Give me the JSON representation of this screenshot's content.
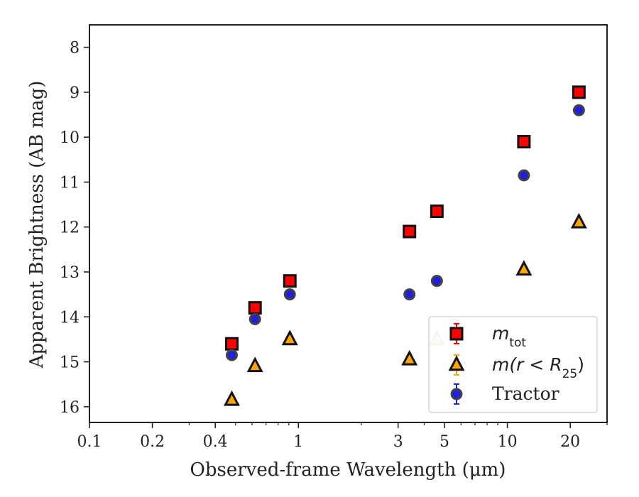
{
  "chart_data": {
    "type": "scatter",
    "xlabel": "Observed-frame Wavelength (μm)",
    "ylabel": "Apparent Brightness (AB mag)",
    "x_scale": "log",
    "xlim": [
      0.1,
      30
    ],
    "ylim": [
      16.35,
      7.5
    ],
    "y_inverted": true,
    "x_ticks": [
      {
        "value": 0.1,
        "label": "0.1"
      },
      {
        "value": 0.2,
        "label": "0.2"
      },
      {
        "value": 0.4,
        "label": "0.4"
      },
      {
        "value": 1,
        "label": "1"
      },
      {
        "value": 3,
        "label": "3"
      },
      {
        "value": 5,
        "label": "5"
      },
      {
        "value": 10,
        "label": "10"
      },
      {
        "value": 20,
        "label": "20"
      }
    ],
    "x_minor_ticks": [
      0.3,
      0.5,
      0.6,
      0.7,
      0.8,
      0.9,
      2,
      4,
      6,
      7,
      8,
      9,
      30
    ],
    "y_ticks": [
      8,
      9,
      10,
      11,
      12,
      13,
      14,
      15,
      16
    ],
    "legend_position": "lower-right",
    "series": [
      {
        "name": "m_tot",
        "legend_main": "m",
        "legend_sub": "tot",
        "marker": "square",
        "color": "#ff0000",
        "edge": "#111111",
        "errorbar_color": "#ff0000",
        "points": [
          {
            "x": 0.48,
            "y": 14.6
          },
          {
            "x": 0.62,
            "y": 13.8
          },
          {
            "x": 0.91,
            "y": 13.2
          },
          {
            "x": 3.4,
            "y": 12.1
          },
          {
            "x": 4.6,
            "y": 11.65
          },
          {
            "x": 12.0,
            "y": 10.1
          },
          {
            "x": 22.0,
            "y": 9.0
          }
        ]
      },
      {
        "name": "m(r<R_25)",
        "legend_main": "m(r < R",
        "legend_sub": "25",
        "legend_tail": ")",
        "marker": "triangle",
        "color": "#ffa500",
        "edge": "#111111",
        "errorbar_color": "#ffa500",
        "points": [
          {
            "x": 0.48,
            "y": 15.85
          },
          {
            "x": 0.62,
            "y": 15.1
          },
          {
            "x": 0.91,
            "y": 14.5
          },
          {
            "x": 3.4,
            "y": 14.95
          },
          {
            "x": 4.6,
            "y": 14.5,
            "faded": true
          },
          {
            "x": 12.0,
            "y": 12.95
          },
          {
            "x": 22.0,
            "y": 11.9
          }
        ]
      },
      {
        "name": "Tractor",
        "legend_main": "Tractor",
        "marker": "circle",
        "color": "#1f1fdd",
        "edge": "#444444",
        "errorbar_color": "#1f1fdd",
        "points": [
          {
            "x": 0.48,
            "y": 14.85
          },
          {
            "x": 0.62,
            "y": 14.05
          },
          {
            "x": 0.91,
            "y": 13.5
          },
          {
            "x": 3.4,
            "y": 13.5
          },
          {
            "x": 4.6,
            "y": 13.2
          },
          {
            "x": 12.0,
            "y": 10.85
          },
          {
            "x": 22.0,
            "y": 9.4
          }
        ]
      }
    ]
  }
}
